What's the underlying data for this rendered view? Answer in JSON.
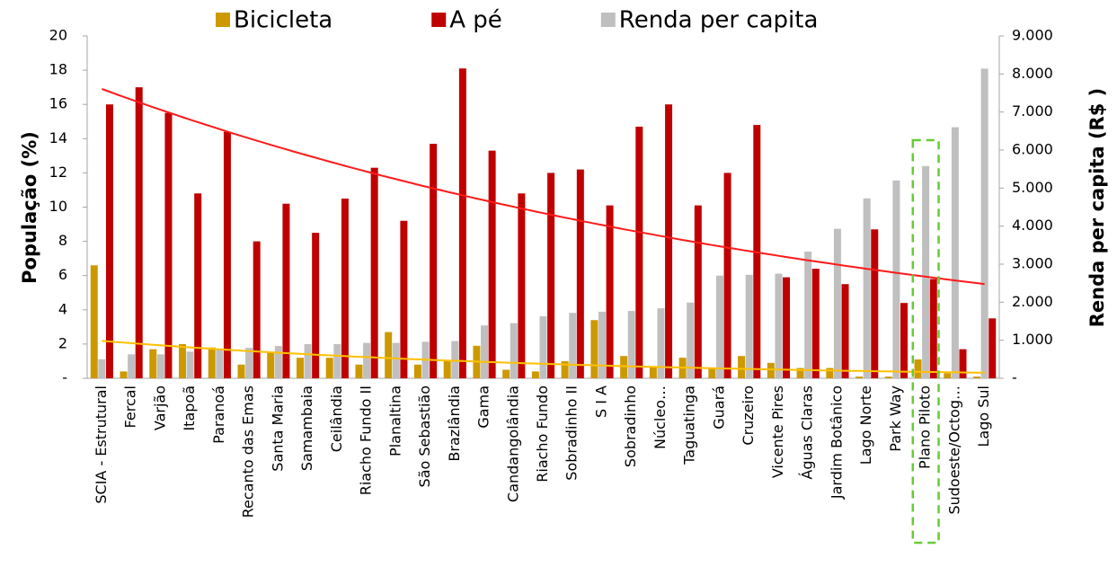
{
  "chart_data": {
    "type": "bar",
    "categories": [
      "SCIA - Estrutural",
      "Fercal",
      "Varjão",
      "Itapoã",
      "Paranoá",
      "Recanto das Emas",
      "Santa Maria",
      "Samambaia",
      "Ceilândia",
      "Riacho Fundo II",
      "Planaltina",
      "São Sebastião",
      "Brazlândia",
      "Gama",
      "Candangolândia",
      "Riacho Fundo",
      "Sobradinho II",
      "S I A",
      "Sobradinho",
      "Núcleo…",
      "Taguatinga",
      "Guará",
      "Cruzeiro",
      "Vicente Pires",
      "Águas Claras",
      "Jardim Botânico",
      "Lago Norte",
      "Park Way",
      "Plano Piloto",
      "Sudoeste/Octog…",
      "Lago Sul"
    ],
    "series": [
      {
        "name": "Bicicleta",
        "color": "#cc9900",
        "trendline": {
          "type": "exponential",
          "color": "#ffc000"
        },
        "values": [
          6.6,
          0.4,
          1.7,
          2.0,
          1.8,
          0.8,
          1.5,
          1.2,
          1.2,
          0.8,
          2.7,
          0.8,
          1.0,
          1.9,
          0.5,
          0.4,
          1.0,
          3.4,
          1.3,
          0.7,
          1.2,
          0.6,
          1.3,
          0.9,
          0.6,
          0.6,
          0.1,
          0.1,
          1.1,
          0.3,
          0.1
        ]
      },
      {
        "name": "A pé",
        "color": "#c00000",
        "trendline": {
          "type": "exponential",
          "color": "#ff1a1a"
        },
        "values": [
          16.0,
          17.0,
          15.5,
          10.8,
          14.4,
          8.0,
          10.2,
          8.5,
          10.5,
          12.3,
          9.2,
          13.7,
          18.1,
          13.3,
          10.8,
          12.0,
          12.2,
          10.1,
          14.7,
          16.0,
          10.1,
          12.0,
          14.8,
          5.9,
          6.4,
          5.5,
          8.7,
          4.4,
          5.8,
          1.7,
          3.5
        ]
      },
      {
        "name": "Renda per capita",
        "color": "#bfbfbf",
        "axis": "y2",
        "values": [
          500,
          630,
          630,
          700,
          760,
          800,
          850,
          900,
          900,
          930,
          930,
          960,
          980,
          1390,
          1450,
          1630,
          1720,
          1750,
          1770,
          1840,
          1990,
          2700,
          2720,
          2750,
          3330,
          3930,
          4730,
          5200,
          5580,
          6600,
          8140
        ]
      }
    ],
    "ylabel": "População (%)",
    "y2label": "Renda per capita (R$ )",
    "ylim": [
      0,
      20
    ],
    "yticks": [
      {
        "value": 0,
        "label": "-"
      },
      2,
      4,
      6,
      8,
      10,
      12,
      14,
      16,
      18,
      20
    ],
    "y2lim": [
      0,
      9000
    ],
    "y2ticks": [
      {
        "value": 0,
        "label": "-"
      },
      {
        "value": 1000,
        "label": "1.000"
      },
      {
        "value": 2000,
        "label": "2.000"
      },
      {
        "value": 3000,
        "label": "3.000"
      },
      {
        "value": 4000,
        "label": "4.000"
      },
      {
        "value": 5000,
        "label": "5.000"
      },
      {
        "value": 6000,
        "label": "6.000"
      },
      {
        "value": 7000,
        "label": "7.000"
      },
      {
        "value": 8000,
        "label": "8.000"
      },
      {
        "value": 9000,
        "label": "9.000"
      }
    ],
    "grid": false,
    "legend": "top",
    "highlight": {
      "category": "Plano Piloto",
      "color": "#66cc33"
    }
  }
}
